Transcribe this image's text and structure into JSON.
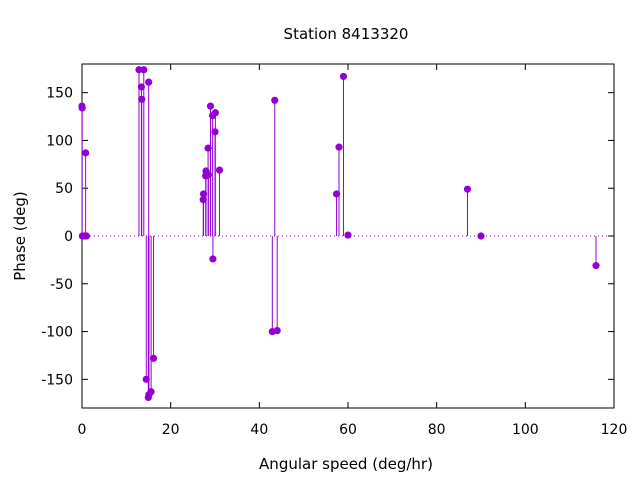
{
  "chart_data": {
    "type": "scatter",
    "style": "impulses-with-points",
    "title": "Station 8413320",
    "xlabel": "Angular speed (deg/hr)",
    "ylabel": "Phase (deg)",
    "xlim": [
      0,
      120
    ],
    "ylim": [
      -180,
      180
    ],
    "xticks": [
      0,
      20,
      40,
      60,
      80,
      100,
      120
    ],
    "yticks": [
      -150,
      -100,
      -50,
      0,
      50,
      100,
      150
    ],
    "grid": false,
    "zero_line": "dotted",
    "color": "#9400d3",
    "points": [
      {
        "x": 0.0,
        "y": 136
      },
      {
        "x": 0.04,
        "y": 134
      },
      {
        "x": 0.08,
        "y": 0
      },
      {
        "x": 0.5,
        "y": 0
      },
      {
        "x": 0.82,
        "y": 87
      },
      {
        "x": 1.0,
        "y": 0
      },
      {
        "x": 12.85,
        "y": 174
      },
      {
        "x": 13.4,
        "y": 156
      },
      {
        "x": 13.47,
        "y": 143
      },
      {
        "x": 13.94,
        "y": 174
      },
      {
        "x": 14.5,
        "y": -150
      },
      {
        "x": 14.96,
        "y": -169
      },
      {
        "x": 15.04,
        "y": 161
      },
      {
        "x": 15.1,
        "y": -166
      },
      {
        "x": 15.59,
        "y": -163
      },
      {
        "x": 16.14,
        "y": -128
      },
      {
        "x": 27.35,
        "y": 38
      },
      {
        "x": 27.42,
        "y": 44
      },
      {
        "x": 27.9,
        "y": 63
      },
      {
        "x": 27.97,
        "y": 68
      },
      {
        "x": 28.44,
        "y": 92
      },
      {
        "x": 28.51,
        "y": 64
      },
      {
        "x": 28.98,
        "y": 136
      },
      {
        "x": 29.46,
        "y": 126
      },
      {
        "x": 29.53,
        "y": -24
      },
      {
        "x": 30.0,
        "y": 109
      },
      {
        "x": 30.08,
        "y": 129
      },
      {
        "x": 31.02,
        "y": 69
      },
      {
        "x": 42.93,
        "y": -100
      },
      {
        "x": 43.48,
        "y": 142
      },
      {
        "x": 44.03,
        "y": -99
      },
      {
        "x": 57.42,
        "y": 44
      },
      {
        "x": 57.97,
        "y": 93
      },
      {
        "x": 58.98,
        "y": 167
      },
      {
        "x": 60.0,
        "y": 1
      },
      {
        "x": 86.95,
        "y": 49
      },
      {
        "x": 90.0,
        "y": 0
      },
      {
        "x": 115.94,
        "y": -31
      }
    ]
  }
}
